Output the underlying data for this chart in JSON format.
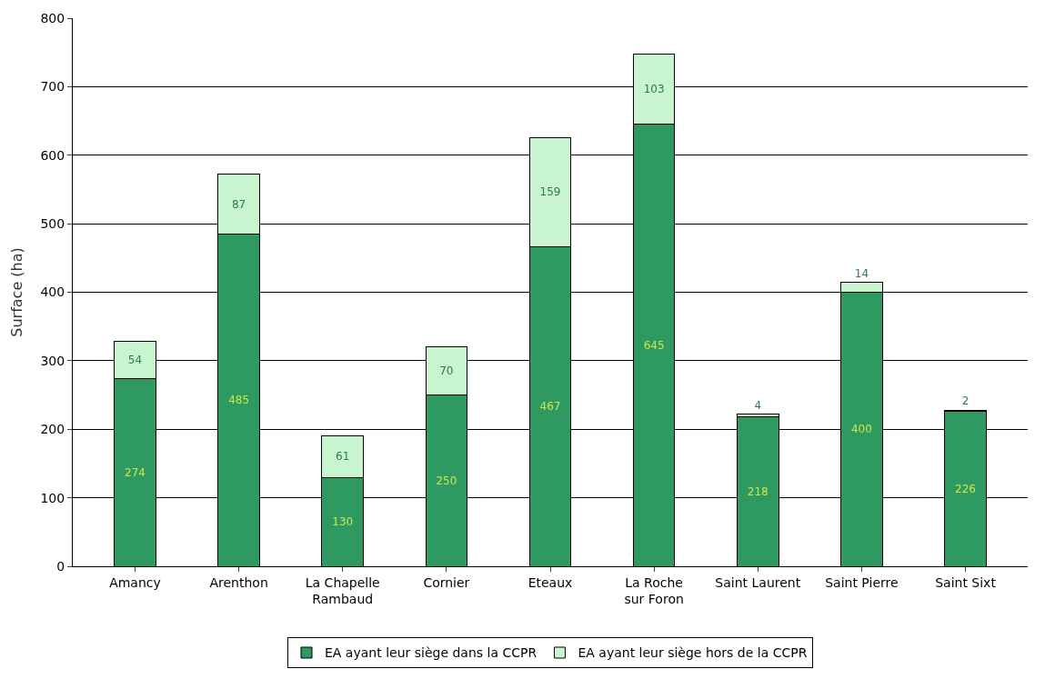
{
  "chart_data": {
    "type": "bar",
    "ylabel": "Surface (ha)",
    "stacked": true,
    "data_labels": true,
    "categories": [
      "Amancy",
      "Arenthon",
      "La Chapelle Rambaud",
      "Cornier",
      "Eteaux",
      "La Roche sur Foron",
      "Saint Laurent",
      "Saint Pierre",
      "Saint Sixt"
    ],
    "series": [
      {
        "name": "EA ayant leur siège dans la CCPR",
        "color": "#2e9a62",
        "values": [
          274,
          485,
          130,
          250,
          467,
          645,
          218,
          400,
          226
        ]
      },
      {
        "name": "EA ayant leur siège hors de la CCPR",
        "color": "#c8f5d0",
        "values": [
          54,
          87,
          61,
          70,
          159,
          103,
          4,
          14,
          2
        ]
      }
    ],
    "ylim": [
      0,
      800
    ],
    "yticks": [
      0,
      100,
      200,
      300,
      400,
      500,
      600,
      700,
      800
    ],
    "grid": "y",
    "legend": "bottom"
  }
}
